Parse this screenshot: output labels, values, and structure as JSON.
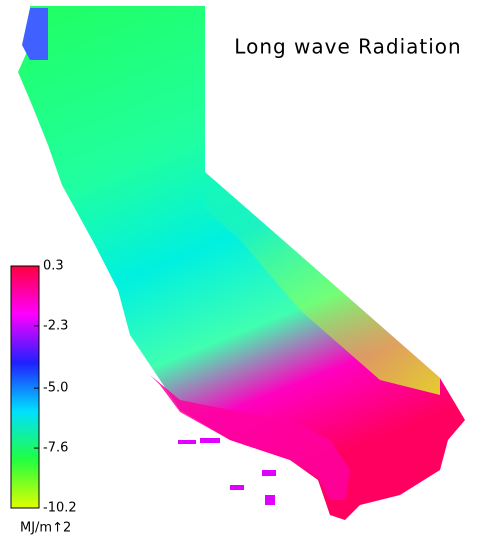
{
  "title": "Long wave Radiation",
  "colorbar": {
    "range": [
      -10.2,
      0.3
    ],
    "ticks": [
      0.3,
      -2.3,
      {
        "value": -5,
        "label": "-5.0"
      },
      -7.6,
      -10.2
    ],
    "colors": [
      "#ff0040",
      "#ff00ff",
      "#2020ff",
      "#00e0ff",
      "#20ff40",
      "#e0ff00"
    ],
    "unit": "MJ/m↑2"
  }
}
